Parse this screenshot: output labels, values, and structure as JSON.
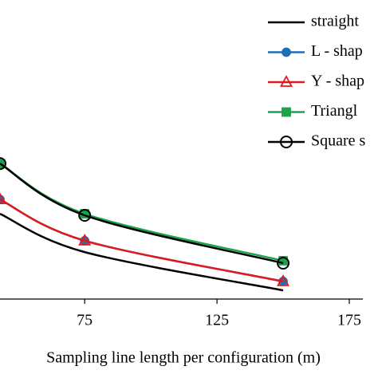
{
  "chart_data": {
    "type": "line",
    "x_label": "Sampling line length per configuration (m)",
    "x": [
      43,
      75,
      150
    ],
    "xlim": [
      43,
      175
    ],
    "xticks": [
      75,
      125,
      175
    ],
    "ylim": [
      0,
      100
    ],
    "legend": "top-right",
    "series": [
      {
        "name": "straight",
        "color": "#000000",
        "marker": "none",
        "values": [
          28.5,
          15.7,
          2.9
        ]
      },
      {
        "name": "L - shap",
        "color": "#1f6fb4",
        "marker": "filled-circle",
        "values": [
          33.3,
          19.5,
          5.9
        ]
      },
      {
        "name": "Y - shap",
        "color": "#e0191c",
        "marker": "open-triangle",
        "values": [
          33.3,
          19.5,
          5.9
        ]
      },
      {
        "name": "Triangl",
        "color": "#1aa34a",
        "marker": "filled-square",
        "values": [
          45.3,
          28.5,
          12.8
        ]
      },
      {
        "name": "Square s",
        "color": "#000000",
        "marker": "open-circle",
        "values": [
          45.3,
          28.0,
          12.0
        ]
      }
    ]
  }
}
